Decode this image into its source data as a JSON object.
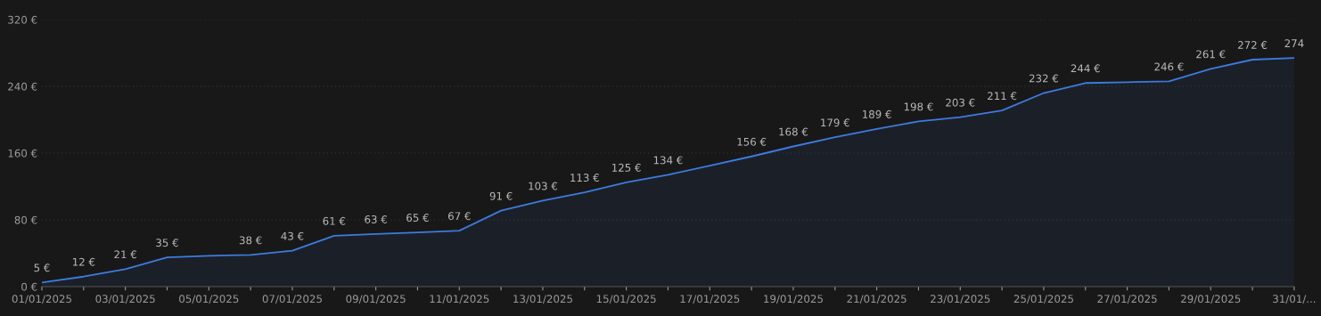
{
  "chart_data": {
    "type": "area",
    "categories": [
      "01/01/2025",
      null,
      "03/01/2025",
      null,
      "05/01/2025",
      null,
      "07/01/2025",
      null,
      "09/01/2025",
      null,
      "11/01/2025",
      null,
      "13/01/2025",
      null,
      "15/01/2025",
      null,
      "17/01/2025",
      null,
      "19/01/2025",
      null,
      "21/01/2025",
      null,
      "23/01/2025",
      null,
      "25/01/2025",
      null,
      "27/01/2025",
      null,
      "29/01/2025",
      null,
      "31/01/..."
    ],
    "series": [
      {
        "color": "#3d7be0",
        "values": [
          5,
          12,
          21,
          35,
          37,
          38,
          43,
          61,
          63,
          65,
          67,
          91,
          103,
          113,
          125,
          134,
          145,
          156,
          168,
          179,
          189,
          198,
          203,
          211,
          232,
          244,
          245,
          246,
          261,
          272,
          274
        ],
        "value_labels": [
          "5 €",
          "12 €",
          "21 €",
          "35 €",
          null,
          "38 €",
          "43 €",
          "61 €",
          "63 €",
          "65 €",
          "67 €",
          "91 €",
          "103 €",
          "113 €",
          "125 €",
          "134 €",
          null,
          "156 €",
          "168 €",
          "179 €",
          "189 €",
          "198 €",
          "203 €",
          "211 €",
          "232 €",
          "244 €",
          null,
          "246 €",
          "261 €",
          "272 €",
          "274"
        ]
      }
    ],
    "ylim": [
      0,
      320
    ],
    "yticks": [
      {
        "value": 0,
        "label": "0 €"
      },
      {
        "value": 80,
        "label": "80 €"
      },
      {
        "value": 160,
        "label": "160 €"
      },
      {
        "value": 240,
        "label": "240 €"
      },
      {
        "value": 320,
        "label": "320 €"
      }
    ],
    "grid": "y",
    "marker": "none",
    "line_style": "solid"
  }
}
